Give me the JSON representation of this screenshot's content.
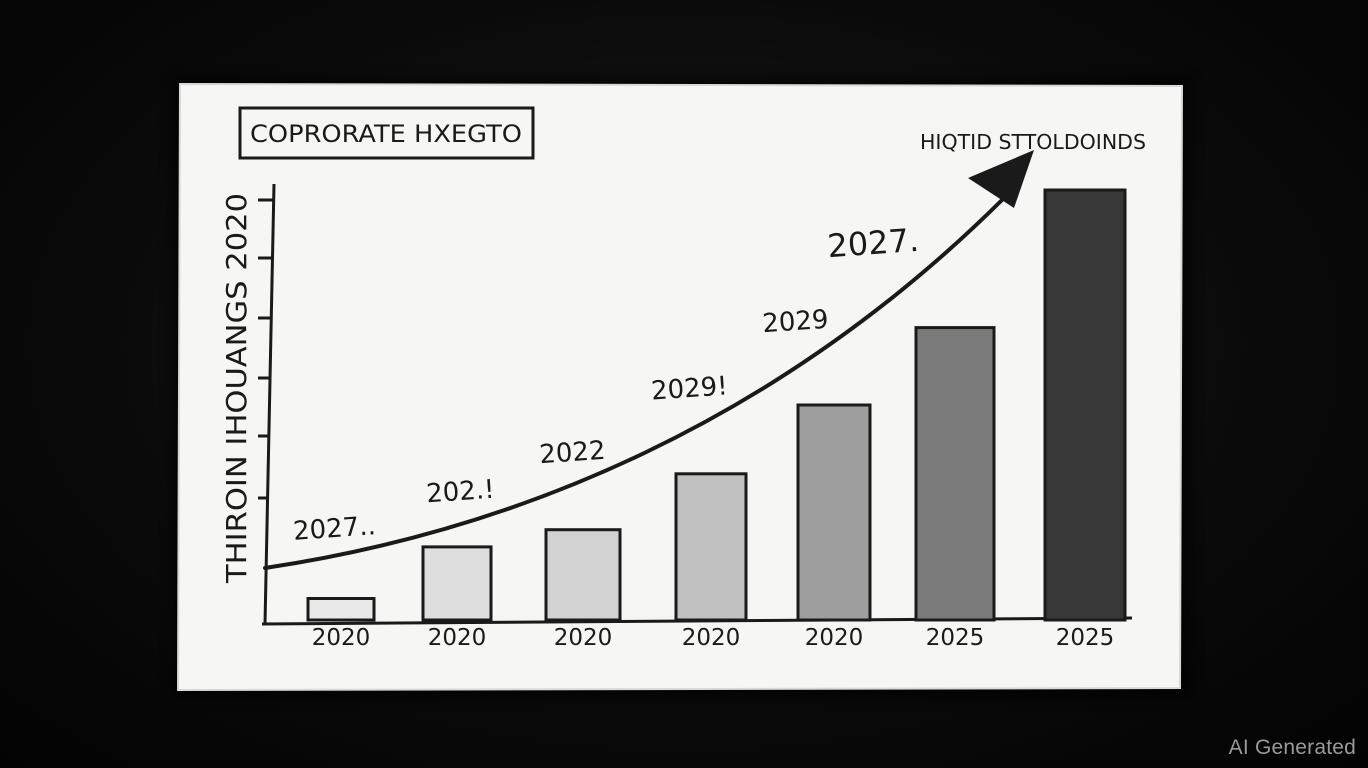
{
  "chart_data": {
    "type": "bar",
    "title": "COPRORATE HXEGTO",
    "ylabel": "THIROIN IHOUANGS 2020",
    "annotation": "HIQTID STTOLDOINDS",
    "categories": [
      "2020",
      "2020",
      "2020",
      "2020",
      "2020",
      "2025",
      "2025"
    ],
    "values": [
      5,
      17,
      21,
      34,
      50,
      68,
      100
    ],
    "ylim": [
      0,
      100
    ],
    "grid": false,
    "bar_colors": [
      "#e9e9e9",
      "#dedede",
      "#d2d2d2",
      "#c0c0c0",
      "#9e9e9e",
      "#7a7a7a",
      "#383838"
    ],
    "trend_labels": [
      "2027..",
      "202.!",
      "2022",
      "2029!",
      "2029",
      "2027."
    ]
  },
  "watermark": "AI Generated"
}
